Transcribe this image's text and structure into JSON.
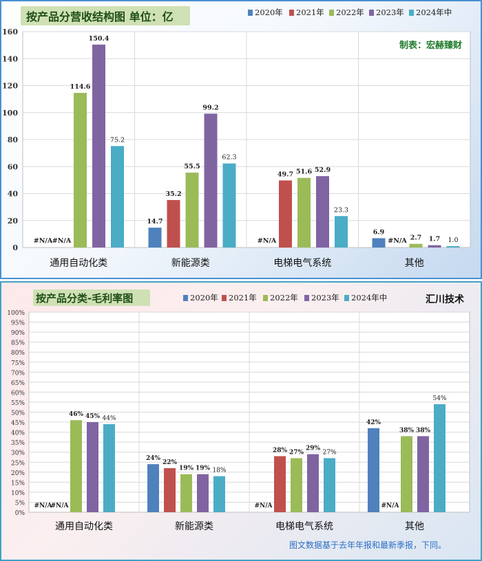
{
  "colors": {
    "2020年": "#4f81bd",
    "2021年": "#c0504d",
    "2022年": "#9bbb59",
    "2023年": "#8064a2",
    "2024年中": "#4bacc6"
  },
  "chart_data": [
    {
      "type": "bar",
      "title": "按产品分营收结构图 单位：亿",
      "annotation": "制表：宏赫臻财",
      "categories": [
        "通用自动化类",
        "新能源类",
        "电梯电气系统",
        "其他"
      ],
      "series": [
        {
          "name": "2020年",
          "values": [
            null,
            14.7,
            null,
            6.9
          ],
          "labels": [
            "#N/A",
            "14.7",
            "#N/A",
            "6.9"
          ]
        },
        {
          "name": "2021年",
          "values": [
            null,
            35.2,
            49.7,
            null
          ],
          "labels": [
            "#N/A",
            "35.2",
            "49.7",
            "#N/A"
          ]
        },
        {
          "name": "2022年",
          "values": [
            114.6,
            55.5,
            51.6,
            2.7
          ],
          "labels": [
            "114.6",
            "55.5",
            "51.6",
            "2.7"
          ]
        },
        {
          "name": "2023年",
          "values": [
            150.4,
            99.2,
            52.9,
            1.7
          ],
          "labels": [
            "150.4",
            "99.2",
            "52.9",
            "1.7"
          ]
        },
        {
          "name": "2024年中",
          "values": [
            75.2,
            62.3,
            23.3,
            1.0
          ],
          "labels": [
            "75.2",
            "62.3",
            "23.3",
            "1.0"
          ]
        }
      ],
      "yticks": [
        "0",
        "20",
        "40",
        "60",
        "80",
        "100",
        "120",
        "140",
        "160"
      ],
      "ylim": [
        0,
        160
      ],
      "legend": "top"
    },
    {
      "type": "bar",
      "title": "按产品分类-毛利率图",
      "annotation": "汇川技术",
      "footnote": "图文数据基于去年年报和最新季报，下同。",
      "categories": [
        "通用自动化类",
        "新能源类",
        "电梯电气系统",
        "其他"
      ],
      "series": [
        {
          "name": "2020年",
          "values": [
            null,
            24,
            null,
            42
          ],
          "labels": [
            "#N/A",
            "24%",
            "#N/A",
            "42%"
          ]
        },
        {
          "name": "2021年",
          "values": [
            null,
            22,
            28,
            null
          ],
          "labels": [
            "#N/A",
            "22%",
            "28%",
            "#N/A"
          ]
        },
        {
          "name": "2022年",
          "values": [
            46,
            19,
            27,
            38
          ],
          "labels": [
            "46%",
            "19%",
            "27%",
            "38%"
          ]
        },
        {
          "name": "2023年",
          "values": [
            45,
            19,
            29,
            38
          ],
          "labels": [
            "45%",
            "19%",
            "29%",
            "38%"
          ]
        },
        {
          "name": "2024年中",
          "values": [
            44,
            18,
            27,
            54
          ],
          "labels": [
            "44%",
            "18%",
            "27%",
            "54%"
          ]
        }
      ],
      "yticks": [
        "0%",
        "5%",
        "10%",
        "15%",
        "20%",
        "25%",
        "30%",
        "35%",
        "40%",
        "45%",
        "50%",
        "55%",
        "60%",
        "65%",
        "70%",
        "75%",
        "80%",
        "85%",
        "90%",
        "95%",
        "100%"
      ],
      "ylim": [
        0,
        100
      ],
      "legend": "top"
    }
  ]
}
